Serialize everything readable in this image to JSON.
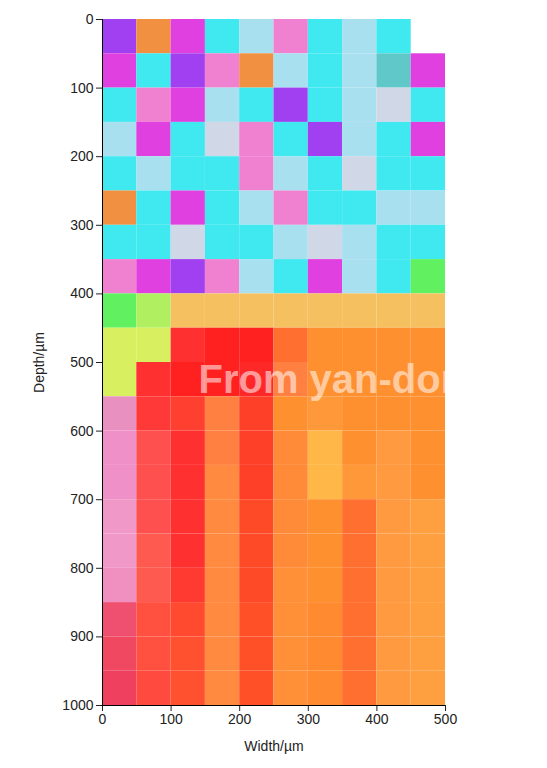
{
  "chart_data": {
    "type": "heatmap",
    "xlabel": "Width/µm",
    "ylabel": "Depth/µm",
    "xlim": [
      0,
      500
    ],
    "ylim": [
      0,
      1000
    ],
    "xticks": [
      0,
      100,
      200,
      300,
      400,
      500
    ],
    "yticks": [
      0,
      100,
      200,
      300,
      400,
      500,
      600,
      700,
      800,
      900,
      1000
    ],
    "annotations": [
      "From yan-dong"
    ],
    "cells": {
      "x": [
        0,
        50,
        100,
        150,
        200,
        250,
        300,
        350,
        400,
        450
      ],
      "y": [
        0,
        50,
        100,
        150,
        200,
        250,
        300,
        350,
        400,
        450,
        500,
        550,
        600,
        650,
        700,
        750,
        800,
        850,
        900,
        950
      ],
      "colors": [
        [
          "#a040f0",
          "#f09040",
          "#e040e0",
          "#40e8f0",
          "#a8e0f0",
          "#f080d0",
          "#40e8f0",
          "#a8e0f0",
          "#40e8f0",
          null
        ],
        [
          "#e040e0",
          "#40e8f0",
          "#a040f0",
          "#f080d0",
          "#f09040",
          "#a8e0f0",
          "#40e8f0",
          "#a8e0f0",
          "#60c8c8",
          "#e040e0"
        ],
        [
          "#40e8f0",
          "#f080d0",
          "#e040e0",
          "#a8e0f0",
          "#40e8f0",
          "#a040f0",
          "#40e8f0",
          "#a8e0f0",
          "#d0d8e8",
          "#40e8f0"
        ],
        [
          "#a8e0f0",
          "#e040e0",
          "#40e8f0",
          "#d0d8e8",
          "#f080d0",
          "#40e8f0",
          "#a040f0",
          "#a8e0f0",
          "#40e8f0",
          "#e040e0"
        ],
        [
          "#40e8f0",
          "#a8e0f0",
          "#40e8f0",
          "#40e8f0",
          "#f080d0",
          "#a8e0f0",
          "#40e8f0",
          "#d0d8e8",
          "#40e8f0",
          "#40e8f0"
        ],
        [
          "#f09040",
          "#40e8f0",
          "#e040e0",
          "#40e8f0",
          "#a8e0f0",
          "#f080d0",
          "#40e8f0",
          "#40e8f0",
          "#a8e0f0",
          "#a8e0f0"
        ],
        [
          "#40e8f0",
          "#40e8f0",
          "#d0d8e8",
          "#40e8f0",
          "#40e8f0",
          "#a8e0f0",
          "#d0d8e8",
          "#a8e0f0",
          "#40e8f0",
          "#40e8f0"
        ],
        [
          "#f080d0",
          "#e040e0",
          "#a040f0",
          "#f080d0",
          "#a8e0f0",
          "#40e8f0",
          "#e040e0",
          "#a8e0f0",
          "#40e8f0",
          "#60f060"
        ],
        [
          "#60f060",
          "#b0f060",
          "#f5c060",
          "#f5c060",
          "#f5c060",
          "#f5c060",
          "#f5c060",
          "#f5c060",
          "#f5c060",
          "#f5c060"
        ],
        [
          "#d8f060",
          "#d8f060",
          "#ff3030",
          "#ff2020",
          "#ff2020",
          "#ff7030",
          "#ff9030",
          "#ff9030",
          "#ff9030",
          "#ff9030"
        ],
        [
          "#d8f060",
          "#ff3030",
          "#ff2020",
          "#ff2020",
          "#ff2828",
          "#ff8040",
          "#ff9030",
          "#ff9030",
          "#ff9030",
          "#ff9030"
        ],
        [
          "#e890c0",
          "#ff3838",
          "#ff4030",
          "#ff8040",
          "#ff4028",
          "#ff9030",
          "#ff9838",
          "#ff9030",
          "#ff9030",
          "#ff9030"
        ],
        [
          "#f090c8",
          "#ff5050",
          "#ff3030",
          "#ff8040",
          "#ff4028",
          "#ff8a38",
          "#ffb848",
          "#ff9030",
          "#ff9a40",
          "#ff9030"
        ],
        [
          "#f090c8",
          "#ff5050",
          "#ff3030",
          "#ff8a40",
          "#ff4028",
          "#ff8a38",
          "#ffb848",
          "#ff9838",
          "#ff9a40",
          "#ff9030"
        ],
        [
          "#f098c8",
          "#ff5050",
          "#ff3030",
          "#ff8a40",
          "#ff4a28",
          "#ff8a38",
          "#ff9030",
          "#ff7030",
          "#ff9a40",
          "#ffa040"
        ],
        [
          "#f098c8",
          "#ff5a50",
          "#ff3030",
          "#ff8a40",
          "#ff4a28",
          "#ff8a38",
          "#ff9030",
          "#ff7030",
          "#ff9a40",
          "#ffa040"
        ],
        [
          "#f090c0",
          "#ff5a50",
          "#ff3a30",
          "#ff8a40",
          "#ff4a28",
          "#ff9038",
          "#ff9030",
          "#ff7030",
          "#ff9a40",
          "#ffa040"
        ],
        [
          "#f05070",
          "#ff5040",
          "#ff4a30",
          "#ff8a40",
          "#ff5028",
          "#ff9038",
          "#ff8a30",
          "#ff7030",
          "#ff9a40",
          "#ffa040"
        ],
        [
          "#f04860",
          "#ff5040",
          "#ff5030",
          "#ff8a40",
          "#ff5028",
          "#ff9038",
          "#ff8a30",
          "#ff7030",
          "#ff9a40",
          "#ffa040"
        ],
        [
          "#f04060",
          "#ff4a40",
          "#ff5030",
          "#ff8a40",
          "#ff5028",
          "#ff9038",
          "#ff8a30",
          "#ff7030",
          "#ff9a40",
          "#ffa040"
        ]
      ]
    }
  }
}
